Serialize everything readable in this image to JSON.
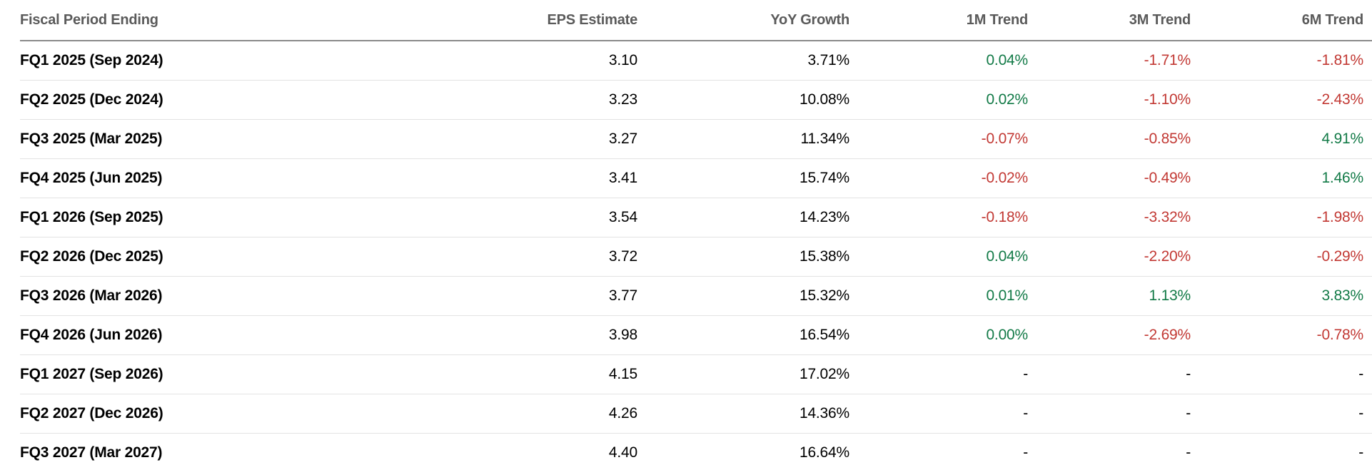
{
  "table": {
    "columns": [
      {
        "label": "Fiscal Period Ending",
        "align": "left"
      },
      {
        "label": "EPS Estimate",
        "align": "right"
      },
      {
        "label": "YoY Growth",
        "align": "right"
      },
      {
        "label": "1M Trend",
        "align": "right"
      },
      {
        "label": "3M Trend",
        "align": "right"
      },
      {
        "label": "6M Trend",
        "align": "right"
      }
    ],
    "rows": [
      {
        "period": "FQ1 2025 (Sep 2024)",
        "eps": "3.10",
        "yoy": "3.71%",
        "m1": "0.04%",
        "m3": "-1.71%",
        "m6": "-1.81%"
      },
      {
        "period": "FQ2 2025 (Dec 2024)",
        "eps": "3.23",
        "yoy": "10.08%",
        "m1": "0.02%",
        "m3": "-1.10%",
        "m6": "-2.43%"
      },
      {
        "period": "FQ3 2025 (Mar 2025)",
        "eps": "3.27",
        "yoy": "11.34%",
        "m1": "-0.07%",
        "m3": "-0.85%",
        "m6": "4.91%"
      },
      {
        "period": "FQ4 2025 (Jun 2025)",
        "eps": "3.41",
        "yoy": "15.74%",
        "m1": "-0.02%",
        "m3": "-0.49%",
        "m6": "1.46%"
      },
      {
        "period": "FQ1 2026 (Sep 2025)",
        "eps": "3.54",
        "yoy": "14.23%",
        "m1": "-0.18%",
        "m3": "-3.32%",
        "m6": "-1.98%"
      },
      {
        "period": "FQ2 2026 (Dec 2025)",
        "eps": "3.72",
        "yoy": "15.38%",
        "m1": "0.04%",
        "m3": "-2.20%",
        "m6": "-0.29%"
      },
      {
        "period": "FQ3 2026 (Mar 2026)",
        "eps": "3.77",
        "yoy": "15.32%",
        "m1": "0.01%",
        "m3": "1.13%",
        "m6": "3.83%"
      },
      {
        "period": "FQ4 2026 (Jun 2026)",
        "eps": "3.98",
        "yoy": "16.54%",
        "m1": "0.00%",
        "m3": "-2.69%",
        "m6": "-0.78%"
      },
      {
        "period": "FQ1 2027 (Sep 2026)",
        "eps": "4.15",
        "yoy": "17.02%",
        "m1": "-",
        "m3": "-",
        "m6": "-"
      },
      {
        "period": "FQ2 2027 (Dec 2026)",
        "eps": "4.26",
        "yoy": "14.36%",
        "m1": "-",
        "m3": "-",
        "m6": "-"
      },
      {
        "period": "FQ3 2027 (Mar 2027)",
        "eps": "4.40",
        "yoy": "16.64%",
        "m1": "-",
        "m3": "-",
        "m6": "-"
      }
    ],
    "colors": {
      "positive": "#127a47",
      "negative": "#c23934",
      "header_text": "#5a5a5a",
      "body_text": "#000000",
      "header_divider": "#8a8a8a",
      "row_divider": "#e3e3e3"
    }
  }
}
